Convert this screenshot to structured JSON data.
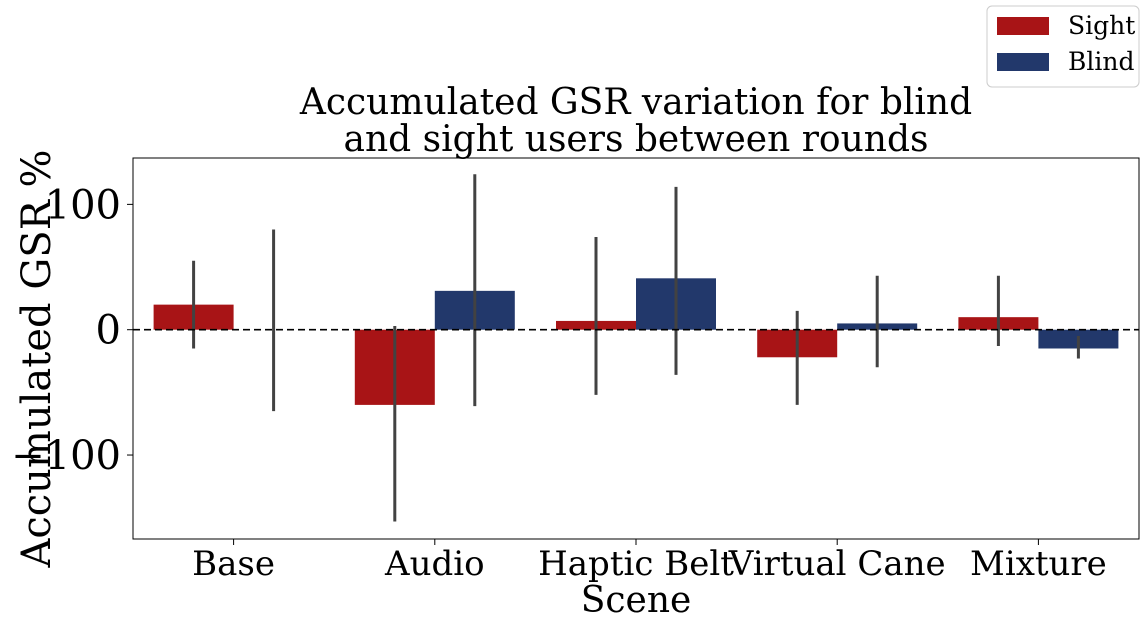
{
  "chart_data": {
    "type": "bar",
    "title": [
      "Accumulated GSR variation for blind",
      "and sight users between rounds"
    ],
    "xlabel": "Scene",
    "ylabel": "Accumulated GSR %",
    "categories": [
      "Base",
      "Audio",
      "Haptic Belt",
      "Virtual Cane",
      "Mixture"
    ],
    "series": [
      {
        "name": "Sight",
        "color": "#a81416",
        "values": [
          20,
          -60,
          7,
          -22,
          10
        ],
        "err_low": [
          -15,
          -153,
          -52,
          -60,
          -13
        ],
        "err_high": [
          55,
          3,
          74,
          15,
          43
        ]
      },
      {
        "name": "Blind",
        "color": "#22386b",
        "values": [
          0,
          31,
          41,
          5,
          -15
        ],
        "err_low": [
          -65,
          -61,
          -36,
          -30,
          -23
        ],
        "err_high": [
          80,
          124,
          114,
          43,
          -5
        ]
      }
    ],
    "ylim": [
      -167,
      137
    ],
    "yticks": [
      100,
      0,
      -100
    ],
    "ytick_labels": [
      "100",
      "0",
      "−100"
    ],
    "reference_line": 0,
    "grid": false,
    "legend_placement": "top-right, outside axes"
  }
}
